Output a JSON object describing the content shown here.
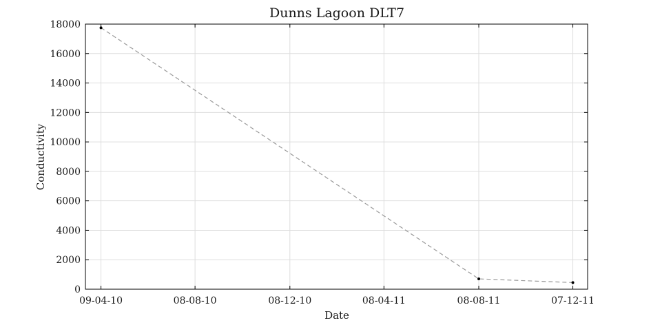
{
  "chart_data": {
    "type": "line",
    "title": "Dunns Lagoon DLT7",
    "xlabel": "Date",
    "ylabel": "Conductivity",
    "x_axis_type": "date",
    "xlim": [
      "2010-03-20",
      "2011-12-26"
    ],
    "ylim": [
      0,
      18000
    ],
    "x_ticks": [
      {
        "date": "2010-04-09",
        "label": "09-04-10"
      },
      {
        "date": "2010-08-08",
        "label": "08-08-10"
      },
      {
        "date": "2010-12-08",
        "label": "08-12-10"
      },
      {
        "date": "2011-04-08",
        "label": "08-04-11"
      },
      {
        "date": "2011-08-08",
        "label": "08-08-11"
      },
      {
        "date": "2011-12-07",
        "label": "07-12-11"
      }
    ],
    "y_ticks": [
      0,
      2000,
      4000,
      6000,
      8000,
      10000,
      12000,
      14000,
      16000,
      18000
    ],
    "series": [
      {
        "line_style": "dashed",
        "line_color": "#999999",
        "marker_color": "#000000",
        "points": [
          {
            "x": "2010-04-09",
            "y": 17750
          },
          {
            "x": "2011-08-08",
            "y": 700
          },
          {
            "x": "2011-12-07",
            "y": 450
          }
        ]
      }
    ],
    "grid": true
  }
}
